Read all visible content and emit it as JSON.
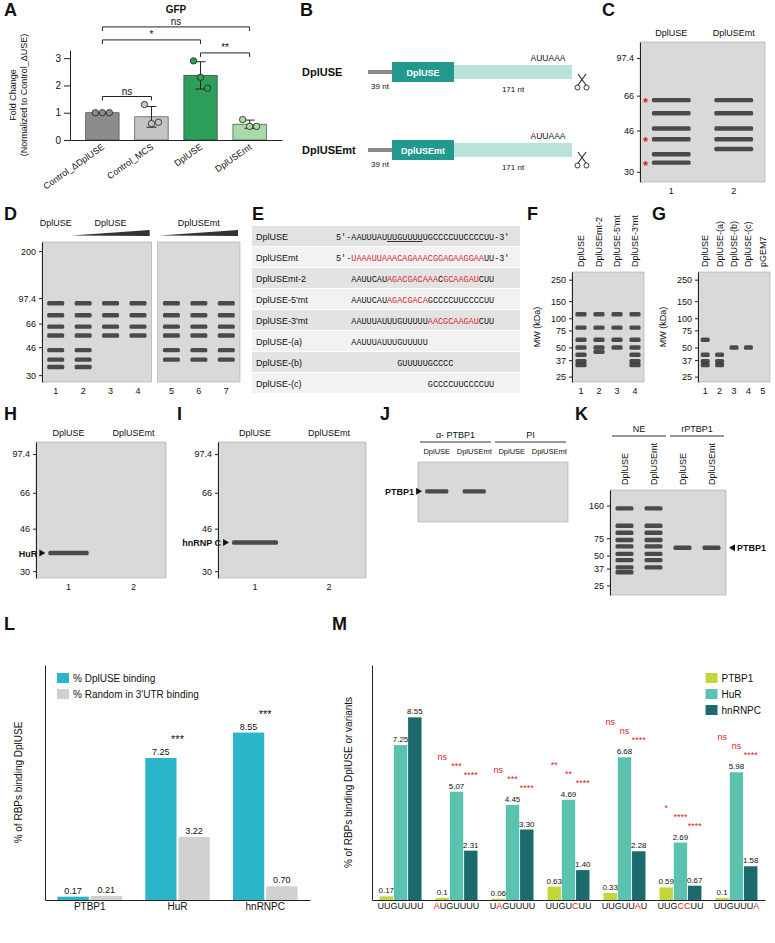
{
  "chart_data": [
    {
      "panel": "A",
      "type": "bar",
      "title": "GFP",
      "y_label": [
        "Fold Change",
        "(Normalized to Control_ΔUSE)"
      ],
      "categories": [
        "Control_ΔDplUSE",
        "Control_MCS",
        "DplUSE",
        "DplUSEmt"
      ],
      "values": [
        1,
        0.85,
        2.37,
        0.58
      ],
      "errors": [
        0,
        0.38,
        0.5,
        0.15
      ],
      "points": [
        [
          1,
          1,
          1
        ],
        [
          1.3,
          0.6,
          0.65
        ],
        [
          2.9,
          2.3,
          1.9
        ],
        [
          0.75,
          0.5,
          0.5
        ]
      ],
      "colors": [
        "#8c8c8c",
        "#c4c4c4",
        "#2e9e5b",
        "#a9d9a4"
      ],
      "ylim": [
        0,
        3.3
      ],
      "yticks": [
        0,
        1,
        2,
        3
      ],
      "annotations": [
        {
          "text": "ns",
          "between": [
            "Control_ΔDplUSE",
            "Control_MCS"
          ]
        },
        {
          "text": "**",
          "between": [
            "DplUSE",
            "DplUSEmt"
          ]
        },
        {
          "text": "*",
          "between": [
            "Control_ΔDplUSE",
            "DplUSE"
          ]
        },
        {
          "text": "ns",
          "between": [
            "Control_ΔDplUSE",
            "DplUSEmt"
          ]
        }
      ]
    },
    {
      "panel": "L",
      "type": "bar",
      "y_label": "% of RBPs binding DplUSE",
      "categories": [
        "PTBP1",
        "HuR",
        "hnRNPC"
      ],
      "series": [
        {
          "name": "% DplUSE binding",
          "color": "#2bb5c8",
          "values": [
            0.17,
            7.25,
            8.55
          ],
          "value_labels": [
            "0.17",
            "7.25",
            "8.55"
          ]
        },
        {
          "name": "% Random in 3′UTR binding",
          "color": "#d0d0d0",
          "values": [
            0.21,
            3.22,
            0.7
          ],
          "value_labels": [
            "0.21",
            "3.22",
            "0.70"
          ]
        }
      ],
      "significance": [
        null,
        "***",
        "***"
      ],
      "ylim": [
        0,
        12
      ],
      "tick_labels": "x",
      "data_labels": true,
      "legend": "top-left"
    },
    {
      "panel": "M",
      "type": "bar",
      "y_label": "% of RBPs binding DplUSE or variants",
      "categories": [
        "UUGUUUU",
        "AUGUUUU",
        "UAGUUUU",
        "UUGUCUU",
        "UUGUUAU",
        "UUGCCUU",
        "UUGUUUA"
      ],
      "series": [
        {
          "name": "PTBP1",
          "color": "#c5d63b",
          "values": [
            0.17,
            0.1,
            0.06,
            0.63,
            0.33,
            0.59,
            0.1
          ],
          "value_labels": [
            "0.17",
            "0.1",
            "0.06",
            "0.63",
            "0.33",
            "0.59",
            "0.1"
          ],
          "significance": [
            null,
            "ns",
            "ns",
            "**",
            "ns",
            "*",
            "ns"
          ]
        },
        {
          "name": "HuR",
          "color": "#5cc2b0",
          "values": [
            7.25,
            5.07,
            4.45,
            4.69,
            6.68,
            2.69,
            5.98
          ],
          "value_labels": [
            "7.25",
            "5.07",
            "4.45",
            "4.69",
            "6.68",
            "2.69",
            "5.98"
          ],
          "significance": [
            null,
            "***",
            "***",
            "**",
            "ns",
            "****",
            "ns"
          ]
        },
        {
          "name": "hnRNPC",
          "color": "#1b6a6c",
          "values": [
            8.55,
            2.31,
            3.3,
            1.4,
            2.28,
            0.67,
            1.58
          ],
          "value_labels": [
            "8.55",
            "2.31",
            "3.30",
            "1.40",
            "2.28",
            "0.67",
            "1.58"
          ],
          "significance": [
            null,
            "****",
            "****",
            "****",
            "****",
            "****",
            "****"
          ]
        }
      ],
      "ylim": [
        0,
        11
      ],
      "tick_labels": "x",
      "data_labels": true,
      "legend": "top-right"
    }
  ],
  "figure": {
    "constructs": {
      "panel": "B",
      "items": [
        {
          "name": "DplUSE",
          "element": "DplUSE"
        },
        {
          "name": "DplUSEmt",
          "element": "DplUSEmt"
        }
      ],
      "spacer": "39 nt",
      "body": "171 nt",
      "signal": "AUUAAA"
    },
    "table": {
      "panel": "E",
      "rows": [
        {
          "name": "DplUSE",
          "segments": [
            {
              "text": "5'-AAUUUAU"
            },
            {
              "text": "UUGUUUU",
              "underline": true
            },
            {
              "text": "UGCCCCUUCCCCUU-3'"
            }
          ]
        },
        {
          "name": "DplUSEmt",
          "segments": [
            {
              "text": "5'-"
            },
            {
              "text": "UAAAUUAAACAGAAACGGAGAAGGAA",
              "mutated": true
            },
            {
              "text": "UU-3'"
            }
          ]
        },
        {
          "name": "DplUSEmt-2",
          "segments": [
            {
              "text": "AAUUCAU"
            },
            {
              "text": "AGACGACAAA",
              "mutated": true
            },
            {
              "text": "C"
            },
            {
              "text": "GCAAGAU",
              "mutated": true
            },
            {
              "text": "CUU"
            }
          ]
        },
        {
          "name": "DplUSE-5'mt",
          "segments": [
            {
              "text": "AAUUCAU"
            },
            {
              "text": "AGACGACA",
              "mutated": true
            },
            {
              "text": "GCCCCUUCCCCUU"
            }
          ]
        },
        {
          "name": "DplUSE-3'mt",
          "segments": [
            {
              "text": "AAUUUAUUUGUUUUU"
            },
            {
              "text": "AACGCAAGAU",
              "mutated": true
            },
            {
              "text": "CUU"
            }
          ]
        },
        {
          "name": "DplUSE-(a)",
          "segments": [
            {
              "text": "AAUUUAUUUGUUUUU"
            }
          ]
        },
        {
          "name": "DplUSE-(b)",
          "segments": [
            {
              "text": "GUUUUUGCCCC"
            }
          ]
        },
        {
          "name": "DplUSE-(c)",
          "segments": [
            {
              "text": "GCCCCUUCCCCUU"
            }
          ]
        }
      ]
    },
    "gels": [
      {
        "panel": "C",
        "lane_labels": [
          "DplUSE",
          "DplUSEmt"
        ],
        "lane_numbers": [
          "1",
          "2"
        ],
        "mw_ticks": [
          97.4,
          66,
          46,
          30
        ],
        "mw_range": [
          115,
          27
        ],
        "bands": [
          [
            63,
            55,
            47,
            42,
            36,
            33
          ],
          [
            63,
            55,
            47,
            42,
            38
          ]
        ],
        "markers": [
          {
            "text": "*",
            "mw": 63
          },
          {
            "text": "*",
            "mw": 42
          },
          {
            "text": "*",
            "mw": 33
          }
        ]
      },
      {
        "panel": "D",
        "groups": [
          {
            "label": "DplUSE",
            "lanes": [
              0,
              0
            ]
          },
          {
            "label": "DplUSE",
            "lanes": [
              1,
              3
            ],
            "wedge": true
          },
          {
            "label": "DplUSEmt",
            "lanes": [
              4,
              6
            ],
            "wedge": true
          }
        ],
        "pieces": [
          [
            0,
            3
          ],
          [
            4,
            6
          ]
        ],
        "lane_numbers": [
          "1",
          "2",
          "3",
          "4",
          "5",
          "6",
          "7"
        ],
        "mw_ticks": [
          200,
          97.4,
          66,
          46,
          30
        ],
        "mw_range": [
          230,
          27
        ],
        "bands": [
          [
            90,
            75,
            63,
            55,
            44,
            38,
            34
          ],
          [
            90,
            75,
            63,
            55,
            44,
            38,
            34
          ],
          [
            90,
            75,
            63,
            55
          ],
          [
            90,
            75,
            63,
            55
          ],
          [
            90,
            75,
            63,
            55,
            44,
            38
          ],
          [
            90,
            75,
            63,
            55,
            44,
            38
          ],
          [
            90,
            75,
            63,
            55,
            44,
            38
          ]
        ]
      },
      {
        "panel": "F",
        "lane_labels": [
          "DplUSE",
          "DplUSEmt-2",
          "DplUSE-5'mt",
          "DplUSE-3'mt"
        ],
        "lane_numbers": [
          "1",
          "2",
          "3",
          "4"
        ],
        "mw_label": "MW (kDa)",
        "mw_ticks": [
          250,
          150,
          100,
          75,
          50,
          37,
          25
        ],
        "mw_range": [
          300,
          22
        ],
        "bands": [
          [
            110,
            80,
            60,
            50,
            42,
            36,
            33
          ],
          [
            110,
            80,
            60,
            50,
            45
          ],
          [
            110,
            80,
            60,
            50
          ],
          [
            110,
            80,
            60,
            50,
            42,
            36,
            33
          ]
        ]
      },
      {
        "panel": "G",
        "lane_labels": [
          "DplUSE",
          "DplUSE-(a)",
          "DplUSE-(b)",
          "DplUSE-(c)",
          "pGEM7"
        ],
        "lane_numbers": [
          "1",
          "2",
          "3",
          "4",
          "5"
        ],
        "mw_label": "MW (kDa)",
        "mw_ticks": [
          250,
          150,
          100,
          75,
          50,
          37,
          25
        ],
        "mw_range": [
          300,
          22
        ],
        "bands": [
          [
            60,
            42,
            36,
            33
          ],
          [
            42,
            36,
            33
          ],
          [
            50
          ],
          [
            50
          ],
          []
        ]
      },
      {
        "panel": "H",
        "lane_labels": [
          "DplUSE",
          "DplUSEmt"
        ],
        "lane_numbers": [
          "1",
          "2"
        ],
        "mw_ticks": [
          97.4,
          66,
          46,
          30
        ],
        "mw_range": [
          110,
          28
        ],
        "bands": [
          [
            36
          ],
          []
        ],
        "protein": {
          "text": "HuR",
          "mw": 36,
          "side": "left"
        }
      },
      {
        "panel": "I",
        "lane_labels": [
          "DplUSE",
          "DplUSEmt"
        ],
        "lane_numbers": [
          "1",
          "2"
        ],
        "mw_ticks": [
          97.4,
          66,
          46,
          30
        ],
        "mw_range": [
          110,
          28
        ],
        "bands": [
          [
            40
          ],
          []
        ],
        "protein": {
          "text": "hnRNP C",
          "mw": 40,
          "side": "left"
        }
      },
      {
        "panel": "J",
        "groups": [
          {
            "label": "α- PTBP1",
            "lanes": [
              0,
              1
            ]
          },
          {
            "label": "PI",
            "lanes": [
              2,
              3
            ]
          }
        ],
        "lane_labels": [
          "DplUSE",
          "DplUSEmt",
          "DplUSE",
          "DplUSEmt"
        ],
        "mw_range": [
          80,
          40
        ],
        "bands": [
          [
            57
          ],
          [
            57
          ],
          [],
          []
        ],
        "protein": {
          "text": "PTBP1",
          "mw": 57,
          "side": "left"
        }
      },
      {
        "panel": "K",
        "groups": [
          {
            "label": "NE",
            "lanes": [
              0,
              1
            ]
          },
          {
            "label": "rPTBP1",
            "lanes": [
              2,
              3
            ]
          }
        ],
        "lane_labels": [
          "DplUSE",
          "DplUSEmt",
          "DplUSE",
          "DplUSEmt"
        ],
        "mw_ticks": [
          160,
          75,
          50,
          37,
          25
        ],
        "mw_range": [
          230,
          20
        ],
        "bands": [
          [
            150,
            100,
            85,
            72,
            62,
            52,
            45,
            38,
            34
          ],
          [
            150,
            100,
            85,
            72,
            62,
            52,
            45,
            38
          ],
          [
            60
          ],
          [
            60
          ]
        ],
        "protein": {
          "text": "PTBP1",
          "mw": 60,
          "side": "right"
        }
      }
    ]
  }
}
